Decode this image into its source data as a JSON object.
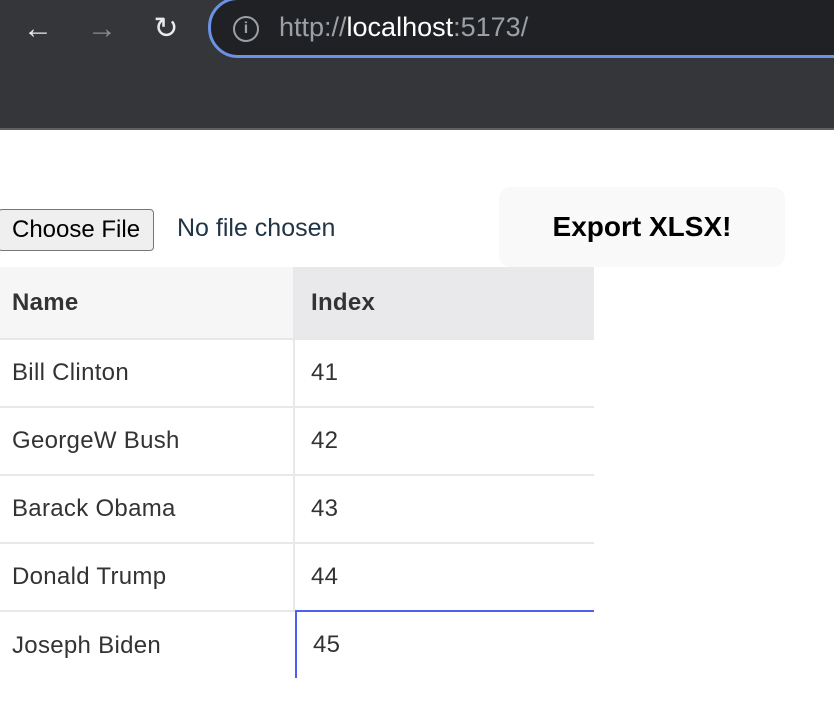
{
  "browser": {
    "url_scheme": "http://",
    "url_host": "localhost",
    "url_port": ":5173/"
  },
  "file_input": {
    "button_label": "Choose File",
    "status": "No file chosen"
  },
  "export_button": {
    "label": "Export XLSX!"
  },
  "grid": {
    "columns": [
      "Name",
      "Index"
    ],
    "rows": [
      [
        "Bill Clinton",
        "41"
      ],
      [
        "GeorgeW Bush",
        "42"
      ],
      [
        "Barack Obama",
        "43"
      ],
      [
        "Donald Trump",
        "44"
      ],
      [
        "Joseph Biden",
        "45"
      ]
    ],
    "selected_cell": "Joseph Biden / Index",
    "selection_color": "#4d5ef0"
  }
}
